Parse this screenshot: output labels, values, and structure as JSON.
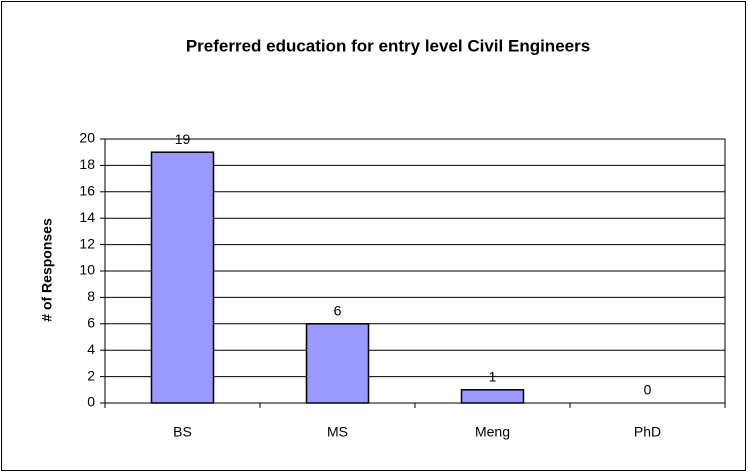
{
  "chart_data": {
    "type": "bar",
    "title": "Preferred education for entry level Civil Engineers",
    "y_label": "# of Responses",
    "categories": [
      "BS",
      "MS",
      "Meng",
      "PhD"
    ],
    "values": [
      19,
      6,
      1,
      0
    ],
    "color": "#9999ff",
    "ylim": [
      0,
      20
    ],
    "yticks": [
      0,
      2,
      4,
      6,
      8,
      10,
      12,
      14,
      16,
      18,
      20
    ],
    "grid": true,
    "data_labels": true
  }
}
